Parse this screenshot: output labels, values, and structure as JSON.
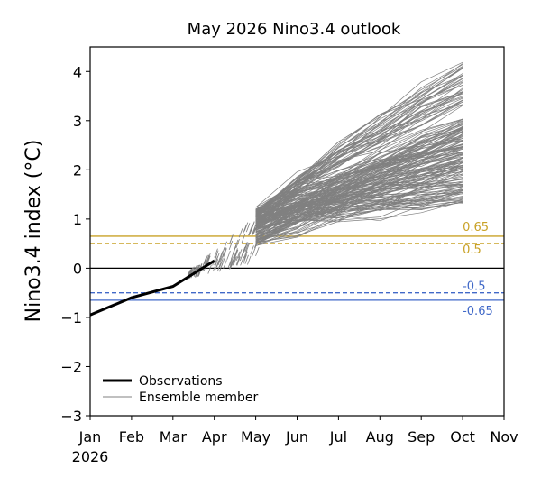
{
  "chart_data": {
    "type": "line",
    "title": "May 2026 Nino3.4 outlook",
    "ylabel": "Nino3.4 index (°C)",
    "xlabel": "",
    "year_label": "2026",
    "x_ticks": [
      {
        "label": "Jan",
        "value": 0
      },
      {
        "label": "Feb",
        "value": 1
      },
      {
        "label": "Mar",
        "value": 2
      },
      {
        "label": "Apr",
        "value": 3
      },
      {
        "label": "May",
        "value": 4
      },
      {
        "label": "Jun",
        "value": 5
      },
      {
        "label": "Jul",
        "value": 6
      },
      {
        "label": "Aug",
        "value": 7
      },
      {
        "label": "Sep",
        "value": 8
      },
      {
        "label": "Oct",
        "value": 9
      },
      {
        "label": "Nov",
        "value": 10
      }
    ],
    "xlim": [
      0,
      10
    ],
    "ylim": [
      -3,
      4.5
    ],
    "y_ticks": [
      -3,
      -2,
      -1,
      0,
      1,
      2,
      3,
      4
    ],
    "grid": false,
    "legend": {
      "placement": "lower-left",
      "entries": [
        {
          "label": "Observations",
          "color": "#000000"
        },
        {
          "label": "Ensemble member",
          "color": "#808080"
        }
      ]
    },
    "observations": {
      "name": "Observations",
      "color": "#000000",
      "x": [
        0,
        1,
        2,
        3
      ],
      "y": [
        -0.95,
        -0.6,
        -0.37,
        0.15
      ]
    },
    "ensemble": {
      "name": "Ensemble member",
      "color": "#808080",
      "x_months": [
        4,
        5,
        6,
        7,
        8,
        9
      ],
      "groups": [
        {
          "count": 40,
          "start": [
            0.75,
            1.25
          ],
          "end": [
            3.3,
            4.2
          ]
        },
        {
          "count": 150,
          "start": [
            0.45,
            1.2
          ],
          "end": [
            1.3,
            3.1
          ]
        }
      ]
    },
    "reference_lines": [
      {
        "y": 0.65,
        "label": "0.65",
        "color": "#c9a227",
        "style": "solid"
      },
      {
        "y": 0.5,
        "label": "0.5",
        "color": "#c9a227",
        "style": "dashed"
      },
      {
        "y": 0,
        "label": "",
        "color": "#000000",
        "style": "solid"
      },
      {
        "y": -0.5,
        "label": "-0.5",
        "color": "#4169c8",
        "style": "dashed"
      },
      {
        "y": -0.65,
        "label": "-0.65",
        "color": "#4169c8",
        "style": "solid"
      }
    ]
  }
}
